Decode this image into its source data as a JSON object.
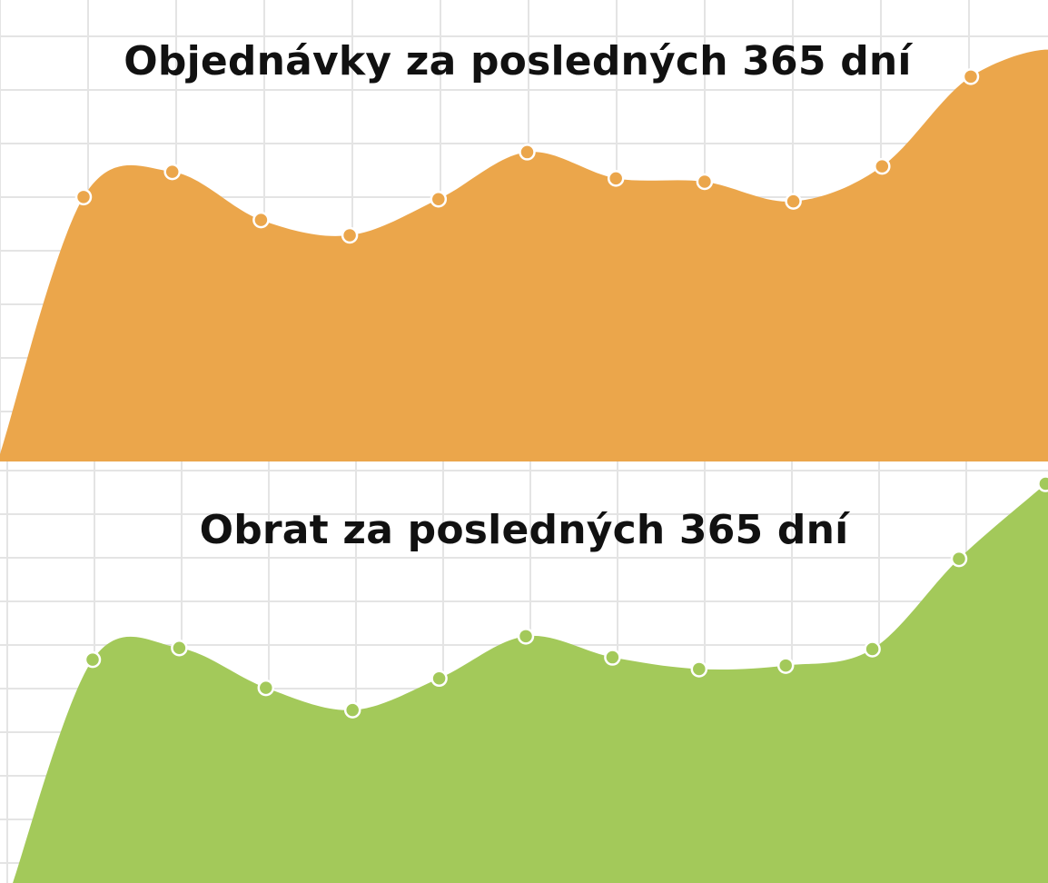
{
  "chart_data": [
    {
      "type": "area",
      "title": "Objednávky za posledných 365 dní",
      "color": "#eba64b",
      "grid": true,
      "x": [
        0,
        1,
        2,
        3,
        4,
        5,
        6,
        7,
        8,
        9,
        10,
        11
      ],
      "values": [
        6.0,
        8.3,
        3.9,
        2.5,
        5.8,
        10.1,
        7.7,
        7.4,
        5.6,
        8.8,
        17.0,
        19.2
      ],
      "ylim": [
        -20,
        24
      ]
    },
    {
      "type": "area",
      "title": "Obrat za posledných 365 dní",
      "color": "#a3c95a",
      "grid": true,
      "x": [
        0,
        1,
        2,
        3,
        4,
        5,
        6,
        7,
        8,
        9,
        10,
        11
      ],
      "values": [
        6.1,
        7.1,
        3.7,
        1.8,
        4.5,
        8.1,
        6.3,
        5.3,
        5.6,
        7.0,
        14.7,
        21.1
      ],
      "ylim": [
        -20,
        23
      ]
    }
  ]
}
